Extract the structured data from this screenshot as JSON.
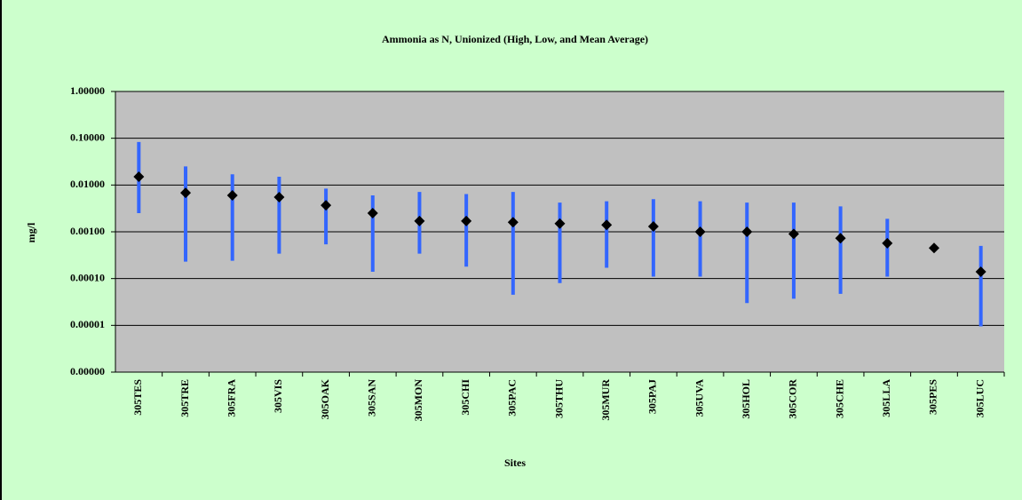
{
  "chart_data": {
    "type": "range",
    "title": "Ammonia as N, Unionized (High, Low, and Mean Average)",
    "x_label": "Sites",
    "y_label": "mg/l",
    "log_y": true,
    "grid": true,
    "range_color": "#3366ff",
    "mean_color": "#000000",
    "plot_color": "#c0c0c0",
    "ylim": [
      1e-06,
      1
    ],
    "yticks": [
      {
        "value": 1e-06,
        "label": "0.00000"
      },
      {
        "value": 1e-05,
        "label": "0.00001"
      },
      {
        "value": 0.0001,
        "label": "0.00010"
      },
      {
        "value": 0.001,
        "label": "0.00100"
      },
      {
        "value": 0.01,
        "label": "0.01000"
      },
      {
        "value": 0.1,
        "label": "0.10000"
      },
      {
        "value": 1,
        "label": "1.00000"
      }
    ],
    "categories": [
      "305TES",
      "305TRE",
      "305FRA",
      "305VIS",
      "305OAK",
      "305SAN",
      "305MON",
      "305CHI",
      "305PAC",
      "305THU",
      "305MUR",
      "305PAJ",
      "305UVA",
      "305HOL",
      "305COR",
      "305CHE",
      "305LLA",
      "305PES",
      "305LUC"
    ],
    "high": [
      0.083,
      0.025,
      0.017,
      0.015,
      0.0084,
      0.006,
      0.0071,
      0.0064,
      0.0071,
      0.0042,
      0.0045,
      0.005,
      0.0045,
      0.0042,
      0.0042,
      0.0035,
      0.0019,
      null,
      0.0005
    ],
    "low": [
      0.0025,
      0.00023,
      0.00024,
      0.00034,
      0.00054,
      0.00014,
      0.00034,
      0.00018,
      4.5e-05,
      8e-05,
      0.00017,
      0.00011,
      0.00011,
      3e-05,
      3.7e-05,
      4.7e-05,
      0.00011,
      null,
      9.5e-06
    ],
    "values": [
      0.015,
      0.0068,
      0.006,
      0.0055,
      0.0037,
      0.0025,
      0.0017,
      0.0017,
      0.0016,
      0.0015,
      0.0014,
      0.0013,
      0.001,
      0.001,
      0.0009,
      0.00073,
      0.00057,
      0.00045,
      0.00014
    ]
  }
}
